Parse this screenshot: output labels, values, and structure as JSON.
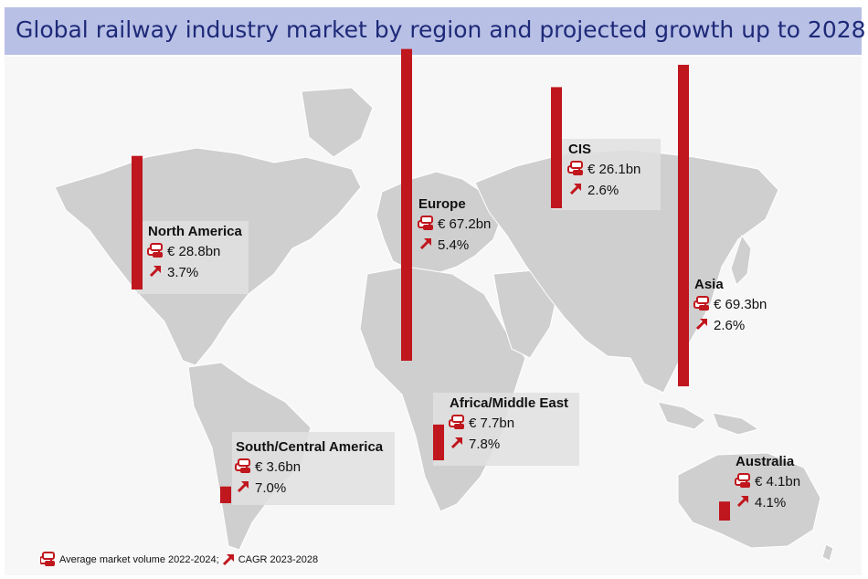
{
  "title": "Global railway industry market by region and projected growth up to 2028",
  "colors": {
    "bar": "#c0161d",
    "land": "#cfcfcf",
    "title_bg": "#b9c0e6",
    "title_text": "#1e2a78",
    "label_box": "#e0e0e0"
  },
  "icons": {
    "volume": "coin-stack-icon",
    "growth": "up-arrow-icon"
  },
  "legend": {
    "volume_text": "Average market volume 2022-2024;",
    "growth_text": "CAGR 2023-2028"
  },
  "chart_data": {
    "type": "bar",
    "title": "Global railway industry market by region and projected growth up to 2028",
    "unit": "€ bn",
    "regions": [
      {
        "name": "North America",
        "value": 28.8,
        "value_label": "€ 28.8bn",
        "cagr": 3.7,
        "cagr_label": "3.7%"
      },
      {
        "name": "Europe",
        "value": 67.2,
        "value_label": "€ 67.2bn",
        "cagr": 5.4,
        "cagr_label": "5.4%"
      },
      {
        "name": "CIS",
        "value": 26.1,
        "value_label": "€ 26.1bn",
        "cagr": 2.6,
        "cagr_label": "2.6%"
      },
      {
        "name": "Asia",
        "value": 69.3,
        "value_label": "€ 69.3bn",
        "cagr": 2.6,
        "cagr_label": "2.6%"
      },
      {
        "name": "Africa/Middle East",
        "value": 7.7,
        "value_label": "€ 7.7bn",
        "cagr": 7.8,
        "cagr_label": "7.8%"
      },
      {
        "name": "South/Central America",
        "value": 3.6,
        "value_label": "€ 3.6bn",
        "cagr": 7.0,
        "cagr_label": "7.0%"
      },
      {
        "name": "Australia",
        "value": 4.1,
        "value_label": "€ 4.1bn",
        "cagr": 4.1,
        "cagr_label": "4.1%"
      }
    ]
  }
}
